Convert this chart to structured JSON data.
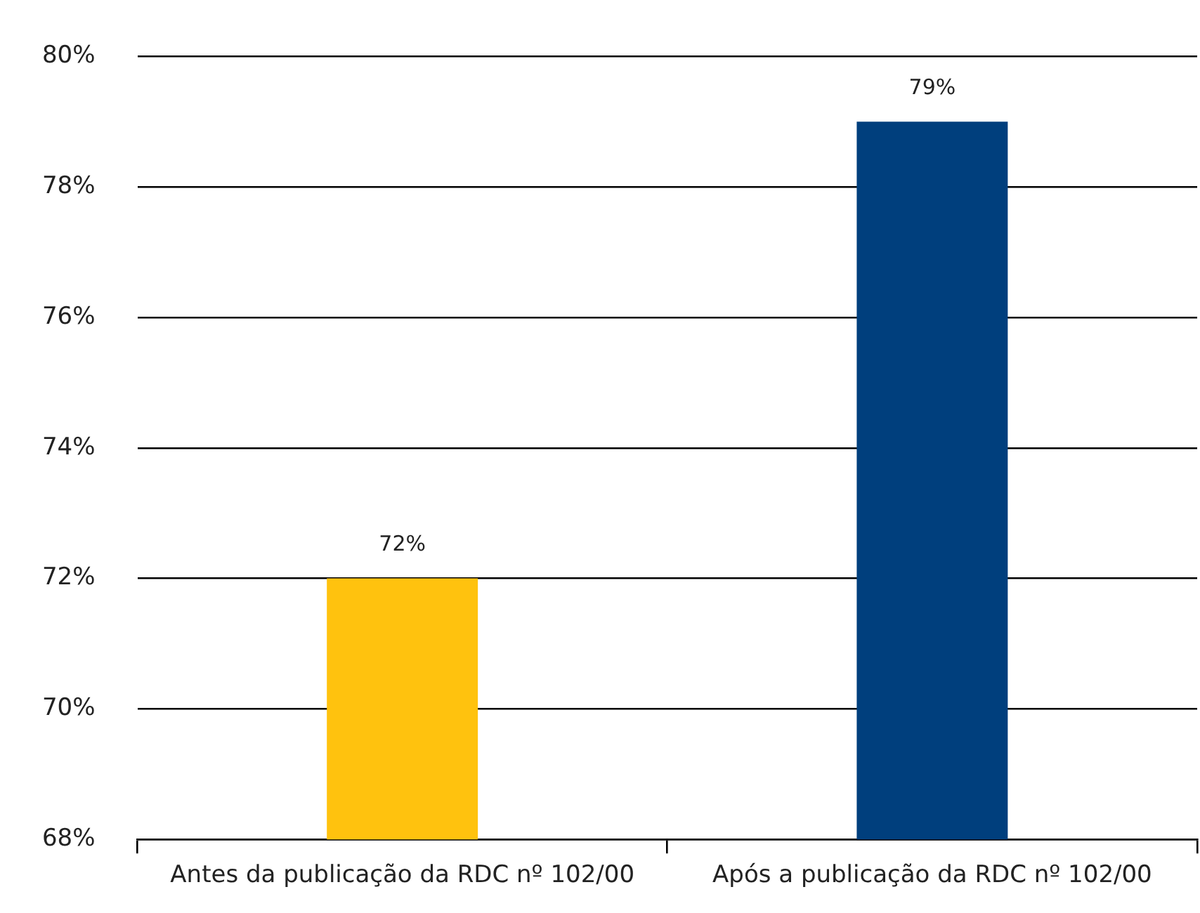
{
  "chart_data": {
    "type": "bar",
    "categories": [
      "Antes da publicação da RDC nº 102/00",
      "Após a publicação da RDC nº 102/00"
    ],
    "values": [
      72,
      79
    ],
    "colors": [
      "#ffc20e",
      "#003f7d"
    ],
    "value_labels": [
      "72%",
      "79%"
    ],
    "ylim": [
      68,
      80
    ],
    "yticks": [
      {
        "value": 68,
        "label": "68%"
      },
      {
        "value": 70,
        "label": "70%"
      },
      {
        "value": 72,
        "label": "72%"
      },
      {
        "value": 74,
        "label": "74%"
      },
      {
        "value": 76,
        "label": "76%"
      },
      {
        "value": 78,
        "label": "78%"
      },
      {
        "value": 80,
        "label": "80%"
      }
    ],
    "grid": "y"
  }
}
